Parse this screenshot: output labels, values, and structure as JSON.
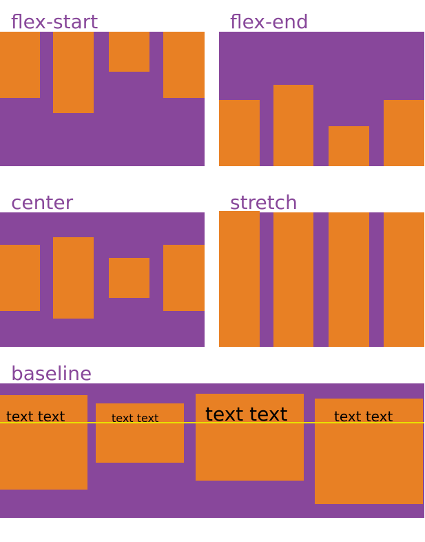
{
  "panels": [
    {
      "label": "flex-start"
    },
    {
      "label": "flex-end"
    },
    {
      "label": "center"
    },
    {
      "label": "stretch"
    },
    {
      "label": "baseline",
      "items": [
        "text text",
        "text text",
        "text text",
        "text text"
      ]
    }
  ]
}
